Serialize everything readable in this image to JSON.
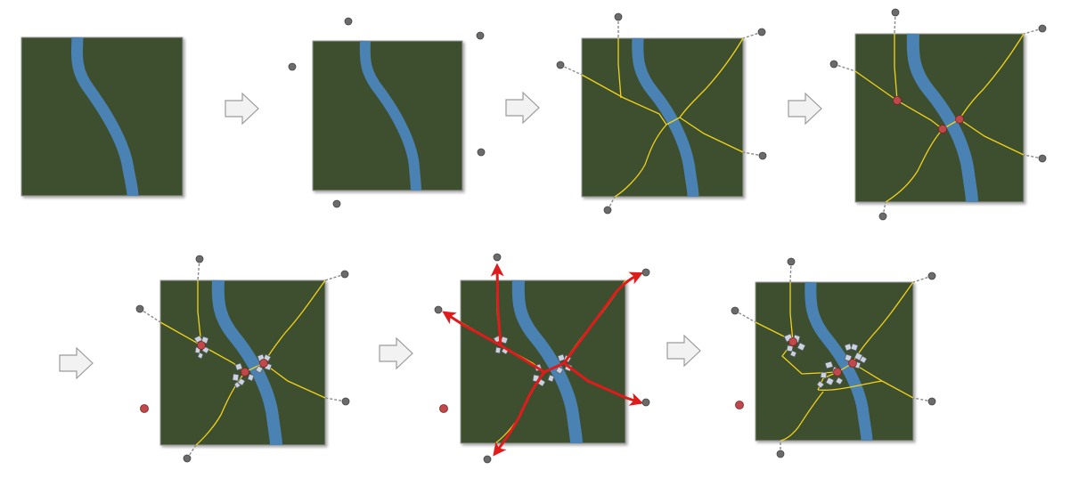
{
  "diagram": {
    "colors": {
      "terrain": "#3e4f2e",
      "terrain_edge": "#9a9a9a",
      "river": "#4a82b4",
      "road": "#f2d21a",
      "exit_node": "#6b6b6b",
      "intersection": "#c0474a",
      "arrow": "#e01b1b",
      "step_arrow_fill": "#f2f2f2",
      "step_arrow_stroke": "#9b9b9b",
      "building": "#c9d2dd",
      "building_edge": "#555b66"
    },
    "icons": [
      "step-arrow-icon",
      "exit-node-icon",
      "intersection-node-icon",
      "building-cluster-icon",
      "direction-arrow-icon"
    ],
    "step_count": 7
  }
}
